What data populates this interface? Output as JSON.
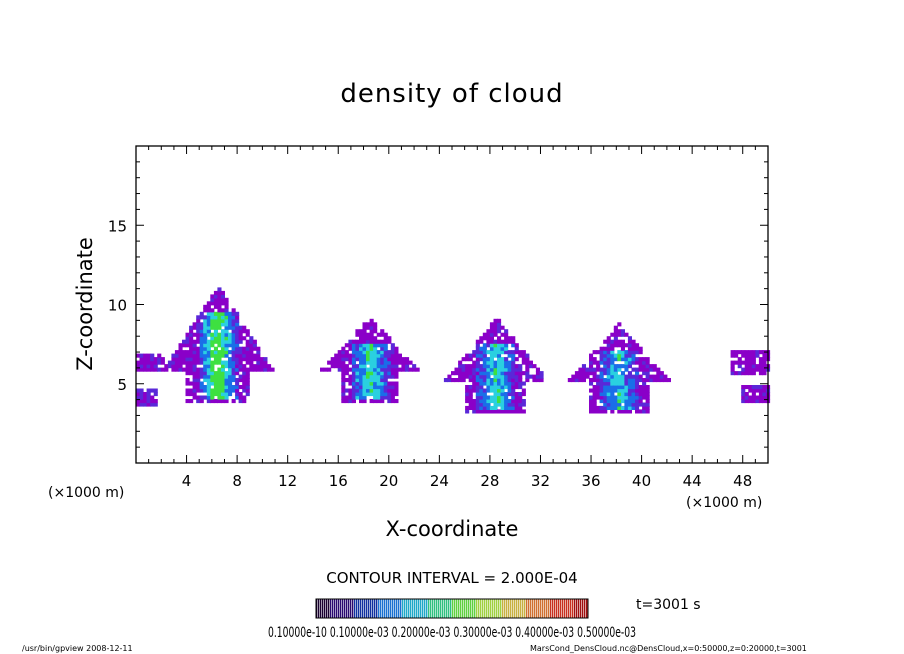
{
  "chart_data": {
    "type": "heatmap",
    "title": "density of cloud",
    "xlabel": "X-coordinate",
    "ylabel": "Z-coordinate",
    "x_unit": "(×1000 m)",
    "y_unit": "(×1000 m)",
    "xlim": [
      0,
      50
    ],
    "ylim": [
      0,
      20
    ],
    "x_ticks": [
      4,
      8,
      12,
      16,
      20,
      24,
      28,
      32,
      36,
      40,
      44,
      48
    ],
    "y_ticks": [
      5,
      10,
      15
    ],
    "contour_interval": "CONTOUR INTERVAL = 2.000E-04",
    "time_label": "t=3001 s",
    "colorbar_labels": "0.10000e-10 0.10000e-03 0.20000e-03 0.30000e-03 0.40000e-03 0.50000e-03",
    "colors": {
      "low": "#8a00c8",
      "mid_low": "#1a6ee8",
      "mid": "#2ad0e0",
      "high": "#3ee040",
      "contour_line": "#000000"
    },
    "cells": [
      {
        "x": 6.5,
        "z_bottom": 3.8,
        "z_top": 11.2,
        "peak": 0.00034
      },
      {
        "x": 18.5,
        "z_bottom": 3.8,
        "z_top": 9.2,
        "peak": 0.00024
      },
      {
        "x": 28.5,
        "z_bottom": 3.2,
        "z_top": 9.2,
        "peak": 0.00022
      },
      {
        "x": 38.2,
        "z_bottom": 3.2,
        "z_top": 8.8,
        "peak": 0.0002
      }
    ]
  },
  "footer": {
    "program": "/usr/bin/gpview   2008-12-11",
    "source": "MarsCond_DensCloud.nc@DensCloud,x=0:50000,z=0:20000,t=3001"
  }
}
